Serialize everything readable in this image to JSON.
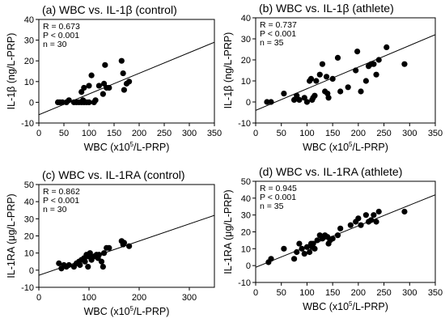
{
  "chart_data": [
    {
      "type": "scatter",
      "title": "(a) WBC vs. IL-1β (control)",
      "xlabel": "WBC (x10",
      "xlabel_sup": "5",
      "xlabel_tail": "/L-PRP)",
      "ylabel": "IL-1β (ng/L-PRP)",
      "xlim": [
        0,
        350
      ],
      "ylim": [
        -10,
        40
      ],
      "xticks": [
        0,
        50,
        100,
        150,
        200,
        250,
        300,
        350
      ],
      "yticks": [
        -10,
        0,
        10,
        20,
        30,
        40
      ],
      "stats": [
        "R = 0.673",
        "P < 0.001",
        "n = 30"
      ],
      "fit": {
        "x": [
          0,
          350
        ],
        "y": [
          -6,
          29
        ]
      },
      "points": [
        [
          38,
          0
        ],
        [
          42,
          0
        ],
        [
          47,
          0
        ],
        [
          55,
          0
        ],
        [
          70,
          0
        ],
        [
          75,
          0
        ],
        [
          80,
          0
        ],
        [
          85,
          0
        ],
        [
          90,
          0
        ],
        [
          95,
          0
        ],
        [
          100,
          0
        ],
        [
          110,
          0
        ],
        [
          85,
          5
        ],
        [
          90,
          7
        ],
        [
          100,
          8
        ],
        [
          120,
          8
        ],
        [
          128,
          4
        ],
        [
          130,
          9
        ],
        [
          132,
          18
        ],
        [
          135,
          7
        ],
        [
          140,
          7
        ],
        [
          105,
          13
        ],
        [
          165,
          20
        ],
        [
          168,
          14
        ],
        [
          170,
          6
        ],
        [
          175,
          9
        ],
        [
          180,
          10
        ],
        [
          113,
          1
        ],
        [
          88,
          1
        ],
        [
          60,
          1
        ]
      ]
    },
    {
      "type": "scatter",
      "title": "(b) WBC vs. IL-1β (athlete)",
      "xlabel": "WBC (x10",
      "xlabel_sup": "5",
      "xlabel_tail": "/L-PRP)",
      "ylabel": "IL-1β (ng/L-PRP)",
      "xlim": [
        0,
        350
      ],
      "ylim": [
        -10,
        40
      ],
      "xticks": [
        0,
        50,
        100,
        150,
        200,
        250,
        300,
        350
      ],
      "yticks": [
        -10,
        0,
        10,
        20,
        30,
        40
      ],
      "stats": [
        "R = 0.737",
        "P < 0.001",
        "n = 35"
      ],
      "fit": {
        "x": [
          0,
          350
        ],
        "y": [
          -4,
          32
        ]
      },
      "points": [
        [
          22,
          0
        ],
        [
          30,
          0
        ],
        [
          55,
          4
        ],
        [
          75,
          1
        ],
        [
          80,
          3
        ],
        [
          85,
          1
        ],
        [
          95,
          2
        ],
        [
          100,
          0
        ],
        [
          105,
          10
        ],
        [
          108,
          11
        ],
        [
          110,
          1
        ],
        [
          112,
          2
        ],
        [
          115,
          3
        ],
        [
          118,
          10
        ],
        [
          125,
          13
        ],
        [
          130,
          18
        ],
        [
          135,
          5
        ],
        [
          138,
          12
        ],
        [
          140,
          4
        ],
        [
          142,
          2
        ],
        [
          150,
          11
        ],
        [
          160,
          21
        ],
        [
          165,
          5
        ],
        [
          180,
          7
        ],
        [
          195,
          15
        ],
        [
          198,
          24
        ],
        [
          205,
          5
        ],
        [
          215,
          10
        ],
        [
          220,
          17
        ],
        [
          225,
          18
        ],
        [
          230,
          18
        ],
        [
          235,
          13
        ],
        [
          240,
          20
        ],
        [
          255,
          26
        ],
        [
          290,
          18
        ]
      ]
    },
    {
      "type": "scatter",
      "title": "(c) WBC vs. IL-1RA (control)",
      "xlabel": "WBC (x10",
      "xlabel_sup": "5",
      "xlabel_tail": "/L-PRP)",
      "ylabel": "IL-1RA (μg/L-PRP)",
      "xlim": [
        0,
        350
      ],
      "ylim": [
        -10,
        50
      ],
      "xticks": [
        0,
        100,
        200,
        300
      ],
      "yticks": [
        -10,
        0,
        10,
        20,
        30,
        40,
        50
      ],
      "stats": [
        "R = 0.862",
        "P < 0.001",
        "n = 30"
      ],
      "fit": {
        "x": [
          0,
          350
        ],
        "y": [
          -3,
          32
        ]
      },
      "points": [
        [
          40,
          4
        ],
        [
          45,
          1
        ],
        [
          50,
          3
        ],
        [
          55,
          2
        ],
        [
          60,
          3
        ],
        [
          70,
          2
        ],
        [
          75,
          4
        ],
        [
          80,
          5
        ],
        [
          82,
          3
        ],
        [
          85,
          6
        ],
        [
          90,
          7
        ],
        [
          92,
          5
        ],
        [
          95,
          9
        ],
        [
          98,
          2
        ],
        [
          100,
          8
        ],
        [
          102,
          10
        ],
        [
          105,
          6
        ],
        [
          110,
          8
        ],
        [
          115,
          9
        ],
        [
          118,
          7
        ],
        [
          120,
          9
        ],
        [
          125,
          5
        ],
        [
          128,
          2
        ],
        [
          130,
          10
        ],
        [
          135,
          13
        ],
        [
          140,
          13
        ],
        [
          165,
          17
        ],
        [
          168,
          15
        ],
        [
          170,
          16
        ],
        [
          180,
          14
        ]
      ]
    },
    {
      "type": "scatter",
      "title": "(d) WBC vs. IL-1RA (athlete)",
      "xlabel": "WBC (x10",
      "xlabel_sup": "5",
      "xlabel_tail": "/L-PRP)",
      "ylabel": "IL-1RA (μg/L-PRP)",
      "xlim": [
        0,
        350
      ],
      "ylim": [
        -10,
        50
      ],
      "xticks": [
        0,
        50,
        100,
        150,
        200,
        250,
        300,
        350
      ],
      "yticks": [
        -10,
        0,
        10,
        20,
        30,
        40,
        50
      ],
      "stats": [
        "R = 0.945",
        "P < 0.001",
        "n = 35"
      ],
      "fit": {
        "x": [
          0,
          350
        ],
        "y": [
          -1,
          42
        ]
      },
      "points": [
        [
          25,
          2
        ],
        [
          30,
          4
        ],
        [
          55,
          10
        ],
        [
          75,
          4
        ],
        [
          80,
          8
        ],
        [
          85,
          13
        ],
        [
          90,
          10
        ],
        [
          95,
          7
        ],
        [
          100,
          11
        ],
        [
          105,
          8
        ],
        [
          108,
          13
        ],
        [
          110,
          11
        ],
        [
          112,
          13
        ],
        [
          115,
          10
        ],
        [
          120,
          15
        ],
        [
          125,
          18
        ],
        [
          130,
          16
        ],
        [
          135,
          18
        ],
        [
          140,
          17
        ],
        [
          142,
          13
        ],
        [
          145,
          15
        ],
        [
          150,
          16
        ],
        [
          160,
          18
        ],
        [
          165,
          22
        ],
        [
          185,
          24
        ],
        [
          195,
          26
        ],
        [
          200,
          28
        ],
        [
          205,
          24
        ],
        [
          215,
          30
        ],
        [
          220,
          26
        ],
        [
          225,
          27
        ],
        [
          230,
          30
        ],
        [
          235,
          26
        ],
        [
          240,
          32
        ],
        [
          290,
          32
        ]
      ]
    }
  ]
}
